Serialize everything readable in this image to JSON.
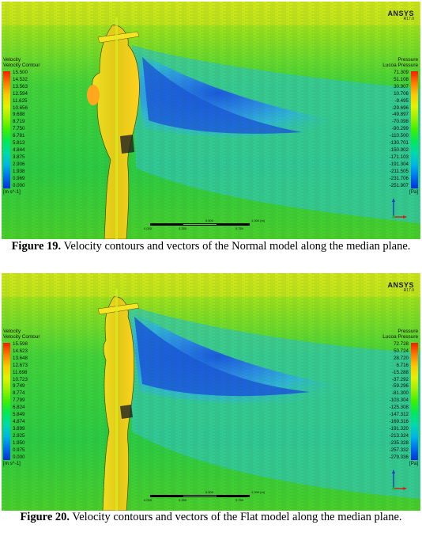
{
  "figures": [
    {
      "software": {
        "logo": "ANSYS",
        "version": "R17.0"
      },
      "left_legend": {
        "title_a": "Velocity",
        "title_b": "Velocity Contour",
        "ticks": [
          "15.500",
          "14.532",
          "13.563",
          "12.594",
          "11.625",
          "10.656",
          "9.688",
          "8.719",
          "7.750",
          "6.781",
          "5.813",
          "4.844",
          "3.875",
          "2.906",
          "1.938",
          "0.969",
          "0.000"
        ],
        "unit": "[m s^-1]"
      },
      "right_legend": {
        "title_a": "Pressure",
        "title_b": "Lucoa Pressure",
        "ticks": [
          "71.309",
          "51.108",
          "30.907",
          "10.706",
          "-9.495",
          "-29.696",
          "-49.897",
          "-70.098",
          "-90.299",
          "-110.500",
          "-130.701",
          "-150.902",
          "-171.103",
          "-191.304",
          "-211.505",
          "-231.706",
          "-251.907"
        ],
        "unit": "[Pa]"
      },
      "scale": {
        "l0": "0.000",
        "l1": "0.500",
        "l2": "1.000 (m)",
        "l3": "0.250",
        "l4": "0.750"
      },
      "caption": {
        "label": "Figure 19.",
        "text": " Velocity contours and vectors of the Normal model along the median plane."
      }
    },
    {
      "software": {
        "logo": "ANSYS",
        "version": "R17.0"
      },
      "left_legend": {
        "title_a": "Velocity",
        "title_b": "Velocity Contour",
        "ticks": [
          "15.598",
          "14.623",
          "13.648",
          "12.673",
          "11.698",
          "10.723",
          "9.749",
          "8.774",
          "7.799",
          "6.824",
          "5.849",
          "4.874",
          "3.899",
          "2.925",
          "1.950",
          "0.975",
          "0.000"
        ],
        "unit": "[m s^-1]"
      },
      "right_legend": {
        "title_a": "Pressure",
        "title_b": "Lucoa Pressure",
        "ticks": [
          "72.728",
          "50.724",
          "28.720",
          "6.716",
          "-15.288",
          "-37.292",
          "-59.296",
          "-81.300",
          "-103.304",
          "-125.308",
          "-147.312",
          "-169.316",
          "-191.320",
          "-213.324",
          "-235.328",
          "-257.332",
          "-279.336"
        ],
        "unit": "[Pa]"
      },
      "scale": {
        "l0": "0.000",
        "l1": "0.500",
        "l2": "1.000 (m)",
        "l3": "0.250",
        "l4": "0.750"
      },
      "caption": {
        "label": "Figure 20.",
        "text": " Velocity contours and vectors of the Flat model along the median plane."
      }
    }
  ]
}
